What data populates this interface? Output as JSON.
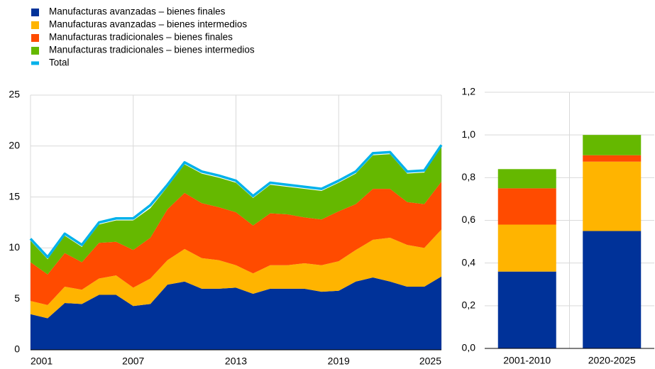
{
  "chart_data": [
    {
      "type": "stacked_area",
      "x": [
        2001,
        2002,
        2003,
        2004,
        2005,
        2006,
        2007,
        2008,
        2009,
        2010,
        2011,
        2012,
        2013,
        2014,
        2015,
        2016,
        2017,
        2018,
        2019,
        2020,
        2021,
        2022,
        2023,
        2024,
        2025
      ],
      "xlim": [
        2001,
        2025
      ],
      "xticks": [
        2001,
        2007,
        2013,
        2019,
        2025
      ],
      "ylim": [
        0,
        25
      ],
      "yticks": [
        0,
        5,
        10,
        15,
        20,
        25
      ],
      "grid": true,
      "series": [
        {
          "name": "Manufacturas avanzadas – bienes finales",
          "color": "#003299",
          "values": [
            3.5,
            3.1,
            4.6,
            4.5,
            5.4,
            5.4,
            4.3,
            4.5,
            6.4,
            6.7,
            6.0,
            6.0,
            6.1,
            5.5,
            6.0,
            6.0,
            6.0,
            5.7,
            5.8,
            6.7,
            7.1,
            6.7,
            6.2,
            6.2,
            7.2
          ]
        },
        {
          "name": "Manufacturas avanzadas – bienes intermedios",
          "color": "#FFB400",
          "values": [
            1.3,
            1.3,
            1.6,
            1.4,
            1.6,
            1.9,
            1.8,
            2.5,
            2.4,
            3.2,
            3.0,
            2.8,
            2.2,
            2.0,
            2.3,
            2.3,
            2.5,
            2.6,
            2.9,
            3.1,
            3.7,
            4.3,
            4.1,
            3.8,
            4.6
          ]
        },
        {
          "name": "Manufacturas tradicionales – bienes finales",
          "color": "#FF4B00",
          "values": [
            3.8,
            3.0,
            3.3,
            2.7,
            3.5,
            3.3,
            3.7,
            4.0,
            5.0,
            5.5,
            5.4,
            5.2,
            5.2,
            4.7,
            5.1,
            5.0,
            4.5,
            4.5,
            4.9,
            4.5,
            5.0,
            4.8,
            4.2,
            4.3,
            4.7
          ]
        },
        {
          "name": "Manufacturas tradicionales – bienes intermedios",
          "color": "#65B800",
          "values": [
            2.1,
            1.5,
            1.7,
            1.5,
            1.8,
            2.1,
            2.9,
            2.9,
            2.2,
            2.8,
            2.9,
            2.9,
            2.9,
            2.7,
            2.8,
            2.7,
            2.8,
            2.8,
            2.8,
            3.0,
            3.3,
            3.4,
            2.8,
            3.1,
            3.4
          ]
        },
        {
          "name": "Total",
          "color": "#00B1EA",
          "kind": "line",
          "values": [
            10.9,
            9.1,
            11.4,
            10.3,
            12.5,
            12.9,
            12.9,
            14.2,
            16.2,
            18.4,
            17.5,
            17.1,
            16.6,
            15.1,
            16.4,
            16.2,
            16.0,
            15.8,
            16.6,
            17.5,
            19.3,
            19.4,
            17.5,
            17.6,
            20.1
          ]
        }
      ]
    },
    {
      "type": "stacked_bar",
      "categories": [
        "2001-2010",
        "2020-2025"
      ],
      "ylim": [
        0,
        1.2
      ],
      "yticks": [
        {
          "value": 0,
          "label": "0,0"
        },
        {
          "value": 0.2,
          "label": "0,2"
        },
        {
          "value": 0.4,
          "label": "0,4"
        },
        {
          "value": 0.6,
          "label": "0,6"
        },
        {
          "value": 0.8,
          "label": "0,8"
        },
        {
          "value": 1.0,
          "label": "1,0"
        },
        {
          "value": 1.2,
          "label": "1,2"
        }
      ],
      "grid": true,
      "series": [
        {
          "color": "#003299",
          "values": [
            0.36,
            0.55
          ]
        },
        {
          "color": "#FFB400",
          "values": [
            0.22,
            0.325
          ]
        },
        {
          "color": "#FF4B00",
          "values": [
            0.17,
            0.03
          ]
        },
        {
          "color": "#65B800",
          "values": [
            0.09,
            0.095
          ]
        }
      ]
    }
  ]
}
